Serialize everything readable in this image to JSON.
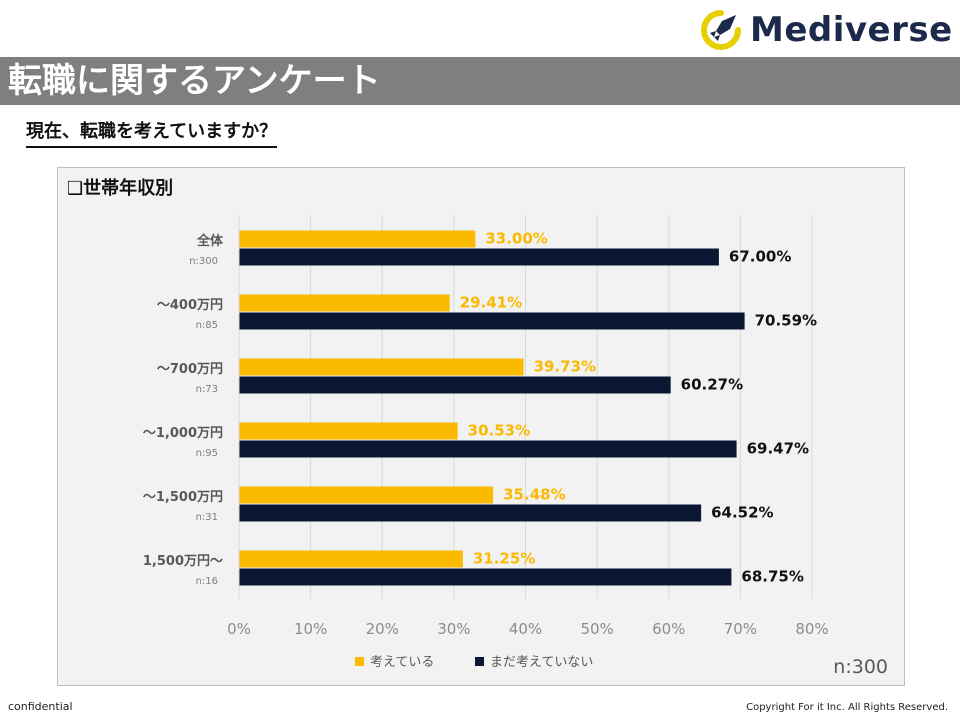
{
  "logo": {
    "text": "Mediverse"
  },
  "header": {
    "title": "転職に関するアンケート"
  },
  "subtitle": "現在、転職を考えていますか？",
  "colors": {
    "considering": "#fbb900",
    "not_considering": "#0b1733",
    "band": "#7f7f7f"
  },
  "chart_data": {
    "type": "bar",
    "orientation": "horizontal",
    "title": "❑世帯年収別",
    "categories": [
      "全体",
      "～400万円",
      "～700万円",
      "～1,000万円",
      "～1,500万円",
      "1,500万円～"
    ],
    "sample_sizes": [
      "n:300",
      "n:85",
      "n:73",
      "n:95",
      "n:31",
      "n:16"
    ],
    "series": [
      {
        "name": "考えている",
        "values": [
          33.0,
          29.41,
          39.73,
          30.53,
          35.48,
          31.25
        ]
      },
      {
        "name": "まだ考えていない",
        "values": [
          67.0,
          70.59,
          60.27,
          69.47,
          64.52,
          68.75
        ]
      }
    ],
    "value_labels": [
      [
        "33.00%",
        "29.41%",
        "39.73%",
        "30.53%",
        "35.48%",
        "31.25%"
      ],
      [
        "67.00%",
        "70.59%",
        "60.27%",
        "69.47%",
        "64.52%",
        "68.75%"
      ]
    ],
    "xlim": [
      0,
      80
    ],
    "xticks": [
      0,
      10,
      20,
      30,
      40,
      50,
      60,
      70,
      80
    ],
    "xtick_labels": [
      "0%",
      "10%",
      "20%",
      "30%",
      "40%",
      "50%",
      "60%",
      "70%",
      "80%"
    ],
    "grid": true,
    "legend_position": "bottom",
    "n_total": "n:300"
  },
  "footer": {
    "left": "confidential",
    "right": "Copyright For it Inc. All Rights Reserved."
  }
}
